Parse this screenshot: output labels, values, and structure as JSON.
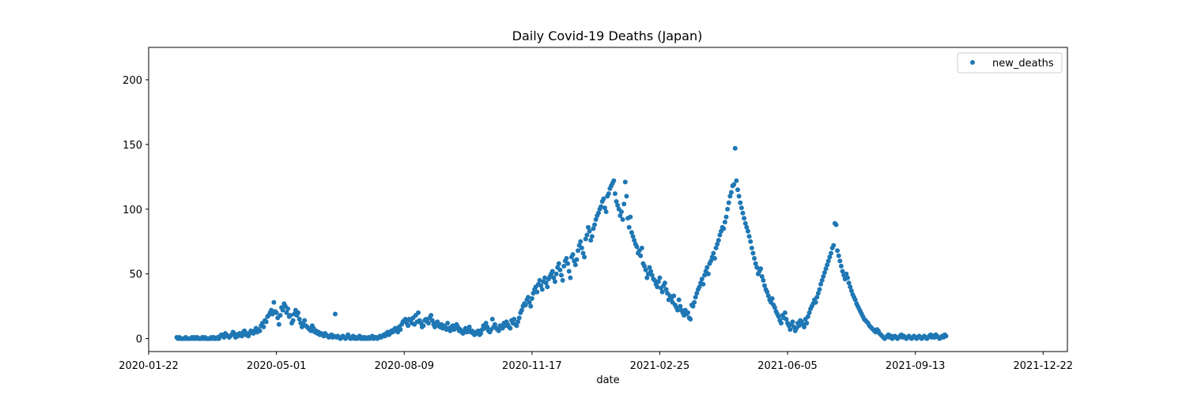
{
  "chart_data": {
    "type": "scatter",
    "title": "Daily Covid-19 Deaths (Japan)",
    "xlabel": "date",
    "ylabel": "",
    "x_start": "2020-02-13",
    "x_range": [
      "2020-01-22",
      "2022-01-10"
    ],
    "ylim": [
      -10,
      225
    ],
    "grid": false,
    "legend": {
      "position": "top-right",
      "entries": [
        "new_deaths"
      ]
    },
    "x_ticks": [
      "2020-01-22",
      "2020-05-01",
      "2020-08-09",
      "2020-11-17",
      "2021-02-25",
      "2021-06-05",
      "2021-09-13",
      "2021-12-22"
    ],
    "y_ticks": [
      0,
      50,
      100,
      150,
      200
    ],
    "marker_color": "#1f77b4",
    "series": [
      {
        "name": "new_deaths",
        "values": [
          1,
          0,
          1,
          0,
          0,
          0,
          0,
          1,
          0,
          0,
          0,
          0,
          1,
          0,
          1,
          0,
          1,
          0,
          0,
          0,
          1,
          0,
          1,
          0,
          0,
          0,
          0,
          1,
          0,
          1,
          0,
          0,
          1,
          0,
          2,
          3,
          2,
          1,
          4,
          3,
          2,
          1,
          2,
          3,
          5,
          4,
          1,
          3,
          2,
          4,
          3,
          2,
          5,
          6,
          3,
          4,
          2,
          4,
          6,
          5,
          4,
          6,
          8,
          5,
          7,
          6,
          10,
          12,
          9,
          14,
          13,
          17,
          18,
          20,
          22,
          19,
          28,
          21,
          20,
          16,
          11,
          18,
          24,
          22,
          27,
          25,
          20,
          23,
          17,
          18,
          12,
          14,
          19,
          22,
          18,
          20,
          15,
          12,
          9,
          11,
          14,
          10,
          9,
          8,
          7,
          6,
          10,
          8,
          5,
          6,
          4,
          5,
          3,
          4,
          3,
          2,
          4,
          3,
          2,
          1,
          2,
          3,
          1,
          2,
          19,
          1,
          2,
          1,
          0,
          1,
          2,
          1,
          0,
          1,
          3,
          1,
          0,
          1,
          2,
          0,
          1,
          0,
          1,
          2,
          0,
          1,
          0,
          1,
          0,
          0,
          1,
          0,
          1,
          2,
          0,
          1,
          1,
          0,
          1,
          2,
          1,
          2,
          3,
          2,
          4,
          5,
          3,
          4,
          6,
          5,
          7,
          8,
          6,
          5,
          9,
          7,
          11,
          13,
          14,
          15,
          12,
          10,
          15,
          14,
          12,
          16,
          11,
          18,
          13,
          20,
          14,
          12,
          9,
          10,
          14,
          15,
          13,
          12,
          16,
          18,
          14,
          11,
          9,
          12,
          13,
          10,
          9,
          11,
          8,
          10,
          9,
          7,
          12,
          8,
          6,
          9,
          10,
          7,
          8,
          11,
          9,
          6,
          7,
          5,
          4,
          6,
          8,
          5,
          7,
          9,
          5,
          6,
          4,
          3,
          5,
          4,
          6,
          3,
          4,
          7,
          10,
          8,
          12,
          9,
          6,
          5,
          7,
          15,
          9,
          11,
          8,
          7,
          6,
          10,
          9,
          8,
          12,
          10,
          13,
          11,
          9,
          8,
          14,
          12,
          15,
          11,
          10,
          13,
          16,
          20,
          22,
          25,
          27,
          26,
          30,
          32,
          28,
          25,
          31,
          35,
          38,
          40,
          36,
          42,
          45,
          41,
          38,
          44,
          47,
          43,
          40,
          46,
          48,
          50,
          52,
          47,
          44,
          50,
          55,
          58,
          53,
          49,
          45,
          56,
          60,
          62,
          58,
          52,
          47,
          63,
          65,
          60,
          57,
          61,
          68,
          72,
          75,
          70,
          66,
          63,
          77,
          80,
          86,
          83,
          76,
          79,
          85,
          88,
          92,
          95,
          97,
          100,
          102,
          106,
          108,
          101,
          98,
          110,
          112,
          116,
          118,
          120,
          122,
          112,
          106,
          103,
          100,
          95,
          98,
          92,
          104,
          121,
          110,
          93,
          86,
          94,
          82,
          79,
          76,
          73,
          71,
          66,
          68,
          64,
          70,
          58,
          56,
          53,
          47,
          50,
          55,
          52,
          49,
          46,
          45,
          42,
          40,
          44,
          47,
          39,
          36,
          41,
          43,
          38,
          35,
          30,
          33,
          31,
          28,
          33,
          26,
          24,
          22,
          30,
          25,
          22,
          20,
          18,
          22,
          19,
          20,
          16,
          15,
          26,
          25,
          28,
          32,
          35,
          38,
          40,
          43,
          46,
          42,
          49,
          52,
          55,
          50,
          58,
          60,
          63,
          66,
          62,
          70,
          73,
          76,
          80,
          83,
          86,
          85,
          90,
          94,
          100,
          105,
          110,
          113,
          118,
          119,
          147,
          122,
          115,
          110,
          105,
          101,
          97,
          93,
          89,
          86,
          83,
          79,
          75,
          70,
          66,
          62,
          58,
          55,
          50,
          52,
          54,
          48,
          45,
          41,
          38,
          36,
          33,
          30,
          28,
          31,
          26,
          24,
          21,
          19,
          17,
          14,
          12,
          18,
          16,
          20,
          15,
          12,
          10,
          7,
          11,
          13,
          9,
          6,
          8,
          12,
          10,
          14,
          13,
          11,
          9,
          15,
          12,
          17,
          20,
          23,
          25,
          27,
          30,
          28,
          32,
          35,
          38,
          42,
          45,
          48,
          51,
          54,
          57,
          60,
          63,
          66,
          70,
          72,
          89,
          88,
          68,
          64,
          60,
          56,
          52,
          49,
          46,
          50,
          47,
          43,
          40,
          37,
          34,
          32,
          30,
          27,
          25,
          23,
          21,
          19,
          17,
          15,
          14,
          13,
          12,
          10,
          9,
          8,
          7,
          6,
          5,
          7,
          6,
          4,
          3,
          2,
          1,
          0,
          1,
          2,
          3,
          1,
          2,
          0,
          1,
          2,
          1,
          0,
          1,
          2,
          3,
          1,
          2,
          1,
          0,
          1,
          2,
          1,
          0,
          1,
          2,
          1,
          0,
          1,
          2,
          1,
          0,
          1,
          2,
          1,
          0,
          1,
          2,
          3,
          1,
          2,
          1,
          3,
          2,
          1,
          0,
          1,
          2,
          1,
          3,
          2
        ]
      }
    ]
  }
}
